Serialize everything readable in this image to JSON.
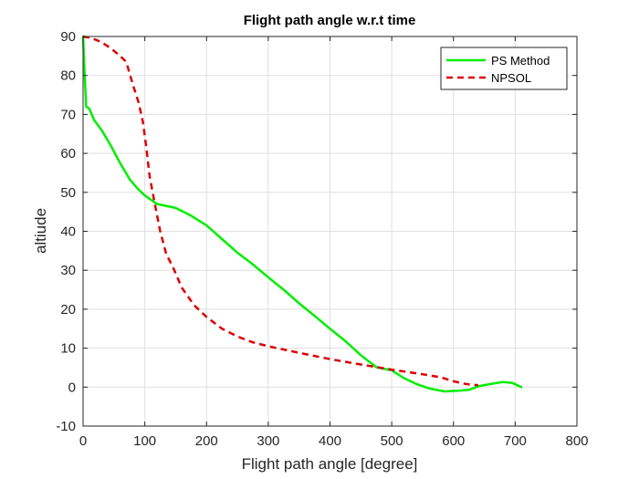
{
  "chart_data": {
    "type": "line",
    "title": "Flight path angle w.r.t time",
    "xlabel": "Flight path angle [degree]",
    "ylabel": "altiude",
    "xlim": [
      0,
      800
    ],
    "ylim": [
      -10,
      90
    ],
    "xticks": [
      0,
      100,
      200,
      300,
      400,
      500,
      600,
      700,
      800
    ],
    "yticks": [
      -10,
      0,
      10,
      20,
      30,
      40,
      50,
      60,
      70,
      80,
      90
    ],
    "grid": true,
    "legend_position": "top-right",
    "series": [
      {
        "name": "PS Method",
        "color": "#00ee00",
        "style": "solid",
        "x": [
          0,
          2,
          5,
          10,
          18,
          30,
          45,
          60,
          75,
          88,
          100,
          120,
          150,
          175,
          200,
          225,
          250,
          275,
          300,
          325,
          350,
          375,
          400,
          425,
          450,
          475,
          500,
          520,
          540,
          560,
          585,
          610,
          625,
          640,
          660,
          680,
          695,
          710
        ],
        "y": [
          90,
          82,
          72,
          71.5,
          68.5,
          66,
          62,
          57.5,
          53.5,
          51,
          49.2,
          47,
          46,
          44,
          41.5,
          38,
          34.5,
          31.5,
          28.2,
          25,
          21.5,
          18.3,
          15,
          11.8,
          8.2,
          5.1,
          4.3,
          2.3,
          0.8,
          -0.3,
          -1.1,
          -0.9,
          -0.7,
          0.2,
          0.8,
          1.3,
          1.1,
          0
        ]
      },
      {
        "name": "NPSOL",
        "color": "#dd0000",
        "style": "dashed",
        "x": [
          0,
          10,
          20,
          30,
          45,
          60,
          70,
          80,
          90,
          97,
          102,
          108,
          115,
          125,
          135,
          145,
          160,
          180,
          200,
          225,
          250,
          275,
          300,
          350,
          400,
          450,
          500,
          550,
          580,
          600,
          620,
          640
        ],
        "y": [
          90,
          89.7,
          89.2,
          88.5,
          87,
          85,
          83.5,
          78,
          73,
          68,
          62,
          54,
          48,
          40,
          34,
          31,
          25.5,
          21,
          18,
          15,
          13,
          11.5,
          10.5,
          8.8,
          7.2,
          5.8,
          4.5,
          3.3,
          2.5,
          1.5,
          0.8,
          0.5
        ]
      }
    ]
  }
}
